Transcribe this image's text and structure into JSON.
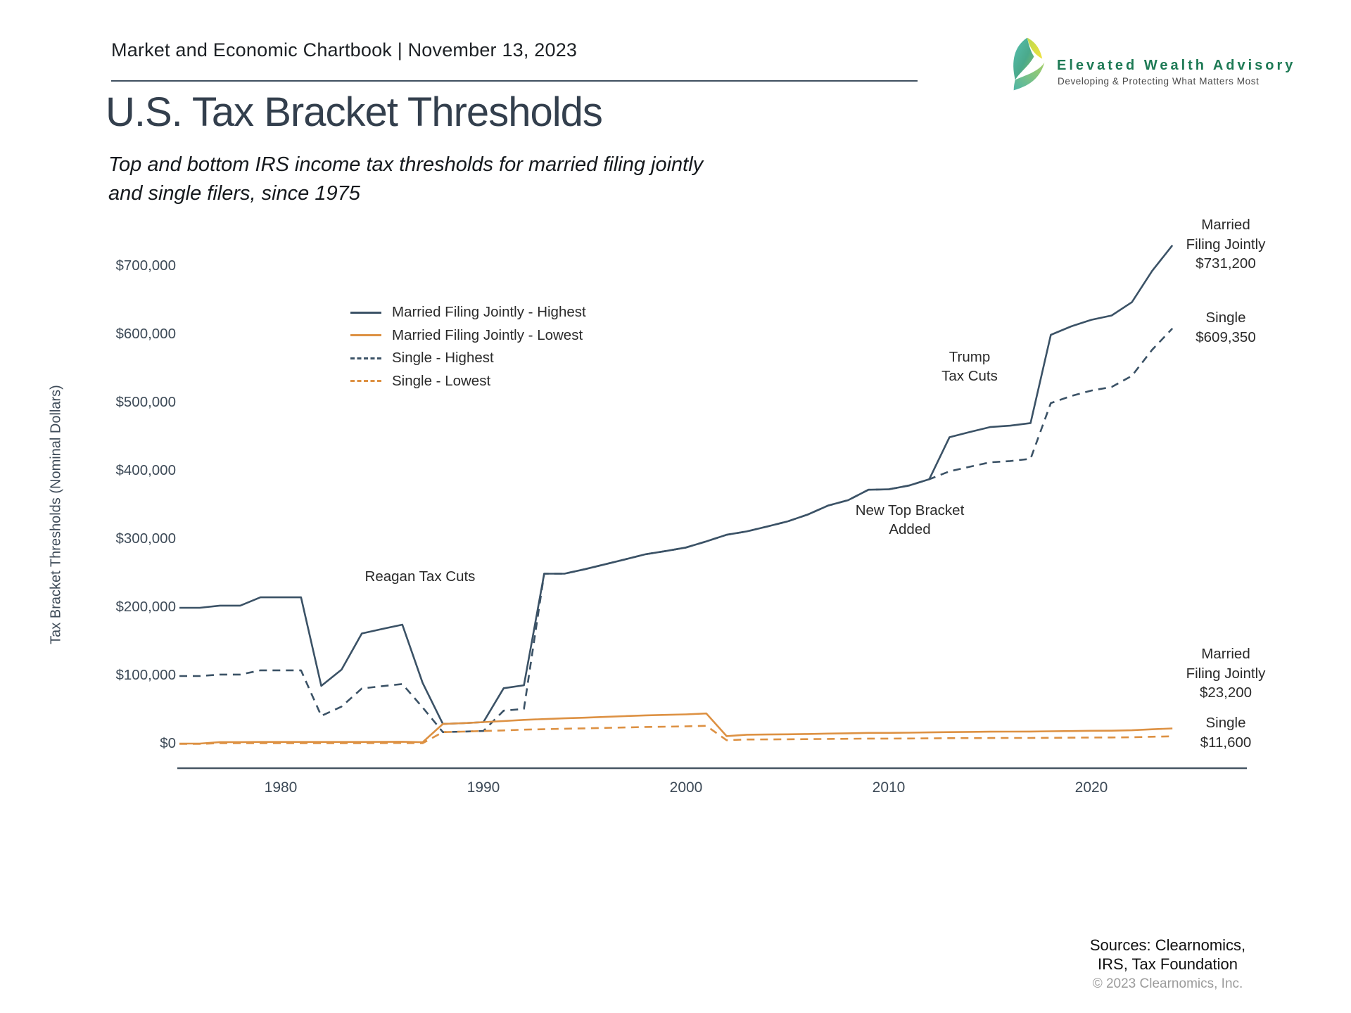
{
  "header": {
    "text": "Market and Economic Chartbook | November 13, 2023"
  },
  "logo": {
    "brand": "Elevated Wealth Advisory",
    "tagline": "Developing & Protecting What Matters Most"
  },
  "title": "U.S. Tax Bracket Thresholds",
  "subtitle_line1": "Top and bottom IRS income tax thresholds for married filing jointly",
  "subtitle_line2": "and single filers, since 1975",
  "colors": {
    "navy": "#3b5266",
    "orange": "#dd9143",
    "brand_green": "#1e7a55",
    "axis_text": "#3d4a57",
    "axis_line": "#465663",
    "copyright_gray": "#9b9b9b"
  },
  "legend": {
    "items": [
      {
        "label": "Married Filing Jointly - Highest",
        "style": "solid",
        "color_key": "navy"
      },
      {
        "label": "Married Filing Jointly - Lowest",
        "style": "solid",
        "color_key": "orange"
      },
      {
        "label": "Single - Highest",
        "style": "dashed",
        "color_key": "navy"
      },
      {
        "label": "Single - Lowest",
        "style": "dashed",
        "color_key": "orange"
      }
    ]
  },
  "annotations": {
    "reagan": "Reagan Tax Cuts",
    "new_bracket_line1": "New Top Bracket",
    "new_bracket_line2": "Added",
    "trump_line1": "Trump",
    "trump_line2": "Tax Cuts"
  },
  "end_labels": {
    "mfj_high": {
      "line1": "Married",
      "line2": "Filing Jointly",
      "line3": "$731,200"
    },
    "single_high": {
      "line1": "Single",
      "line2": "$609,350"
    },
    "mfj_low": {
      "line1": "Married",
      "line2": "Filing Jointly",
      "line3": "$23,200"
    },
    "single_low": {
      "line1": "Single",
      "line2": "$11,600"
    }
  },
  "sources": {
    "line1": "Sources: Clearnomics,",
    "line2": "IRS, Tax Foundation",
    "copyright": "© 2023 Clearnomics, Inc."
  },
  "chart_data": {
    "type": "line",
    "ylabel": "Tax Bracket Thresholds (Nominal Dollars)",
    "xlabel": "",
    "ylim": [
      0,
      740000
    ],
    "xlim": [
      1975,
      2024
    ],
    "grid": false,
    "legend_position": "upper-left-inside",
    "y_ticks": [
      "$0",
      "$100,000",
      "$200,000",
      "$300,000",
      "$400,000",
      "$500,000",
      "$600,000",
      "$700,000"
    ],
    "x_ticks": [
      "1980",
      "1990",
      "2000",
      "2010",
      "2020"
    ],
    "years": [
      1975,
      1976,
      1977,
      1978,
      1979,
      1980,
      1981,
      1982,
      1983,
      1984,
      1985,
      1986,
      1987,
      1988,
      1989,
      1990,
      1991,
      1992,
      1993,
      1994,
      1995,
      1996,
      1997,
      1998,
      1999,
      2000,
      2001,
      2002,
      2003,
      2004,
      2005,
      2006,
      2007,
      2008,
      2009,
      2010,
      2011,
      2012,
      2013,
      2014,
      2015,
      2016,
      2017,
      2018,
      2019,
      2020,
      2021,
      2022,
      2023,
      2024
    ],
    "series": [
      {
        "name": "Single - Highest",
        "style": "dashed",
        "color_key": "navy",
        "end_value": 609350,
        "values": [
          100000,
          100000,
          102200,
          102200,
          108300,
          108300,
          108300,
          41500,
          55300,
          81800,
          85130,
          88270,
          54000,
          17850,
          18550,
          19450,
          49300,
          51900,
          250000,
          250000,
          256500,
          263750,
          271050,
          278450,
          283150,
          288350,
          297350,
          307050,
          311950,
          319100,
          326450,
          336550,
          349700,
          357700,
          372950,
          373650,
          379150,
          388350,
          400000,
          406750,
          413200,
          415050,
          418400,
          500000,
          510300,
          518400,
          523600,
          539900,
          578125,
          609350
        ]
      },
      {
        "name": "Married Filing Jointly - Highest",
        "style": "solid",
        "color_key": "navy",
        "end_value": 731200,
        "values": [
          200000,
          200000,
          203200,
          203200,
          215400,
          215400,
          215400,
          85600,
          109400,
          162400,
          169020,
          175250,
          90000,
          29750,
          30950,
          32450,
          82150,
          86500,
          250000,
          250000,
          256500,
          263750,
          271050,
          278450,
          283150,
          288350,
          297350,
          307050,
          311950,
          319100,
          326450,
          336550,
          349700,
          357700,
          372950,
          373650,
          379150,
          388350,
          450000,
          457600,
          464850,
          466950,
          470700,
          600000,
          612350,
          622050,
          628300,
          647850,
          693750,
          731200
        ]
      },
      {
        "name": "Married Filing Jointly - Lowest",
        "style": "solid",
        "color_key": "orange",
        "end_value": 23200,
        "values": [
          1000,
          1000,
          3200,
          3200,
          3400,
          3400,
          3400,
          3400,
          3400,
          3400,
          3540,
          3670,
          3000,
          29750,
          30950,
          32450,
          34000,
          35800,
          36900,
          38000,
          39000,
          40100,
          41200,
          42350,
          43050,
          43850,
          45200,
          12000,
          14000,
          14300,
          14600,
          15100,
          15650,
          16050,
          16700,
          16750,
          17000,
          17400,
          17850,
          18150,
          18450,
          18550,
          18650,
          19050,
          19400,
          19750,
          19900,
          20550,
          22000,
          23200
        ]
      },
      {
        "name": "Single - Lowest",
        "style": "dashed",
        "color_key": "orange",
        "end_value": 11600,
        "values": [
          500,
          500,
          1600,
          1600,
          1700,
          1700,
          1700,
          1700,
          1700,
          1700,
          1770,
          1835,
          1500,
          17850,
          18550,
          19450,
          20350,
          21450,
          22100,
          22750,
          23350,
          24000,
          24650,
          25350,
          25750,
          26250,
          27050,
          6000,
          7000,
          7150,
          7300,
          7550,
          7825,
          8025,
          8350,
          8375,
          8500,
          8700,
          8925,
          9075,
          9225,
          9275,
          9325,
          9525,
          9700,
          9875,
          9950,
          10275,
          11000,
          11600
        ]
      }
    ]
  }
}
